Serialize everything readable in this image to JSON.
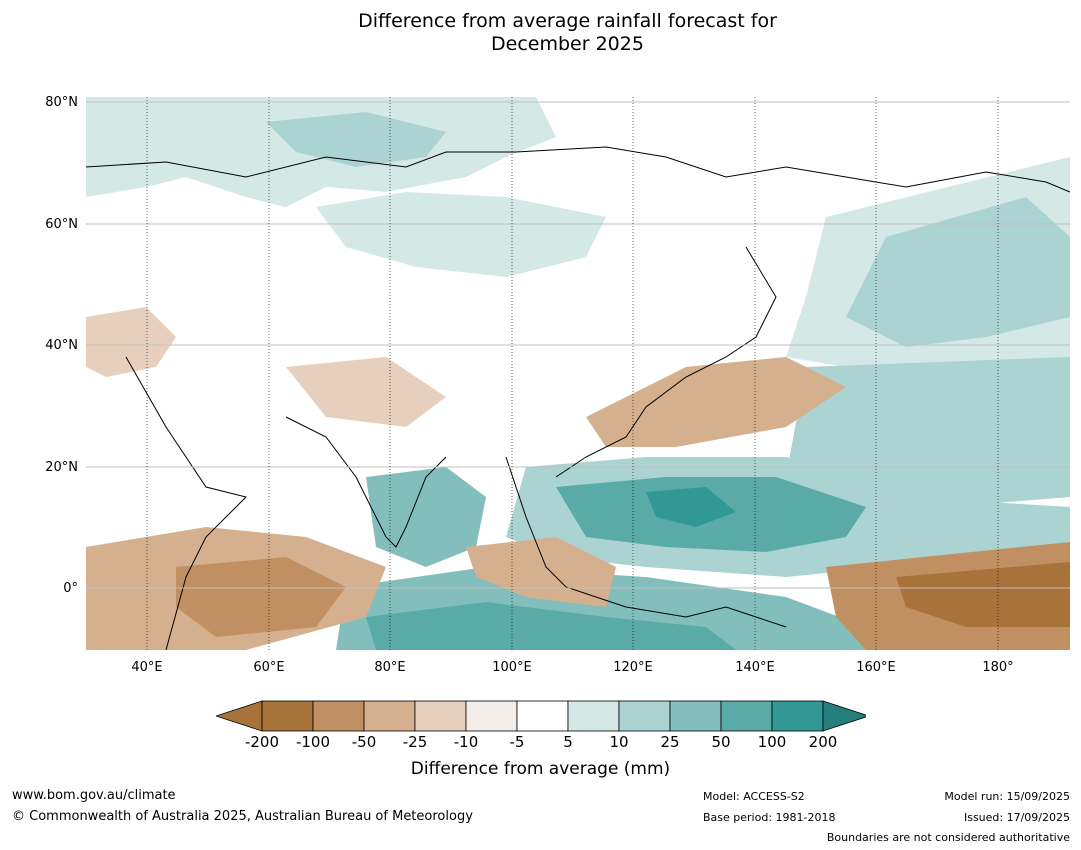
{
  "title": {
    "line1": "Difference from average rainfall forecast for",
    "line2": "December 2025"
  },
  "map": {
    "latitude_labels": [
      "80°N",
      "60°N",
      "40°N",
      "20°N",
      "0°"
    ],
    "longitude_labels": [
      "40°E",
      "60°E",
      "80°E",
      "100°E",
      "120°E",
      "140°E",
      "160°E",
      "180°"
    ],
    "extent": {
      "lon_min": 30,
      "lon_max": 192,
      "lat_min": -10,
      "lat_max": 81
    }
  },
  "legend": {
    "label": "Difference from average (mm)",
    "ticks": [
      "-200",
      "-100",
      "-50",
      "-25",
      "-10",
      "-5",
      "5",
      "10",
      "25",
      "50",
      "100",
      "200"
    ],
    "colors": [
      "#a8733a",
      "#c09062",
      "#d4b08f",
      "#e6d0bd",
      "#f2ede8",
      "#ffffff",
      "#d4e8e6",
      "#abd3d1",
      "#82bfbc",
      "#5aaba8",
      "#319896",
      "#25807d"
    ]
  },
  "footer": {
    "website": "www.bom.gov.au/climate",
    "copyright": "© Commonwealth of Australia 2025, Australian Bureau of Meteorology",
    "model": "Model: ACCESS-S2",
    "base_period": "Base period: 1981-2018",
    "model_run": "Model run: 15/09/2025",
    "issued": "Issued: 17/09/2025",
    "boundaries_note": "Boundaries are not considered authoritative"
  }
}
